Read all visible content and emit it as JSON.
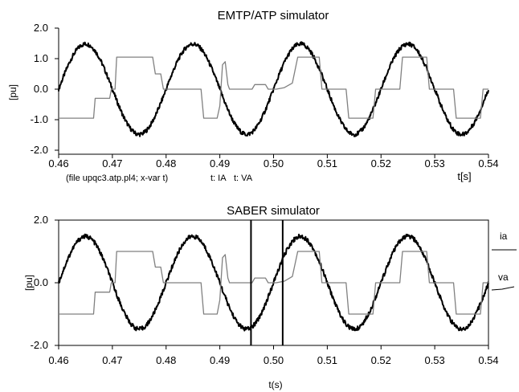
{
  "colors": {
    "ia": "#000000",
    "va": "#808080",
    "axis": "#000000"
  },
  "chart_data": [
    {
      "type": "line",
      "title": "EMTP/ATP simulator",
      "xlabel": "t[s]",
      "ylabel": "[pu]",
      "footer_file": "(file upqc3.atp.pl4; x-var t)",
      "legend": [
        "t: IA",
        "t: VA"
      ],
      "xlim": [
        0.46,
        0.54
      ],
      "ylim": [
        -2.0,
        2.0
      ],
      "xticks": [
        "0.46",
        "0.47",
        "0.48",
        "0.49",
        "0.50",
        "0.51",
        "0.52",
        "0.53",
        "0.54"
      ],
      "yticks": [
        "2.0",
        "1.0",
        "0.0",
        "-1.0",
        "-2.0"
      ],
      "grid": false,
      "series": [
        {
          "name": "t: IA",
          "color": "#000000",
          "x": [
            0.46,
            0.4625,
            0.465,
            0.4675,
            0.47,
            0.4725,
            0.475,
            0.4775,
            0.48,
            0.4825,
            0.485,
            0.4875,
            0.49,
            0.4925,
            0.495,
            0.4975,
            0.5,
            0.5025,
            0.505,
            0.5075,
            0.51,
            0.5125,
            0.515,
            0.5175,
            0.52,
            0.5225,
            0.525,
            0.5275,
            0.53,
            0.5325,
            0.535,
            0.5375,
            0.54
          ],
          "y": [
            0.0,
            1.05,
            1.48,
            1.05,
            0.0,
            -1.05,
            -1.48,
            -1.05,
            0.0,
            1.05,
            1.48,
            1.05,
            0.0,
            -1.05,
            -1.48,
            -1.05,
            0.0,
            1.05,
            1.48,
            1.05,
            0.0,
            -1.05,
            -1.48,
            -1.05,
            0.0,
            1.05,
            1.48,
            1.05,
            0.0,
            -1.05,
            -1.48,
            -1.05,
            0.0
          ]
        },
        {
          "name": "t: VA",
          "color": "#808080",
          "x": [
            0.46,
            0.4665,
            0.4668,
            0.4695,
            0.4698,
            0.4705,
            0.4708,
            0.4775,
            0.478,
            0.479,
            0.4795,
            0.4865,
            0.487,
            0.4895,
            0.49,
            0.4905,
            0.491,
            0.4915,
            0.4918,
            0.496,
            0.4965,
            0.4985,
            0.499,
            0.5005,
            0.502,
            0.5035,
            0.5045,
            0.5085,
            0.509,
            0.5135,
            0.514,
            0.5185,
            0.519,
            0.5235,
            0.524,
            0.5285,
            0.529,
            0.5335,
            0.534,
            0.5385,
            0.539,
            0.54
          ],
          "y": [
            -0.95,
            -0.95,
            -0.3,
            -0.3,
            0.0,
            0.0,
            1.05,
            1.05,
            0.5,
            0.5,
            0.0,
            0.0,
            -0.95,
            -0.95,
            -0.55,
            0.8,
            0.9,
            0.15,
            0.0,
            0.0,
            0.15,
            0.15,
            0.0,
            0.0,
            0.05,
            0.2,
            1.05,
            1.05,
            0.0,
            0.0,
            -0.95,
            -0.95,
            0.0,
            0.0,
            1.05,
            1.05,
            0.0,
            0.0,
            -0.95,
            -0.95,
            0.0,
            0.0
          ]
        }
      ]
    },
    {
      "type": "line",
      "title": "SABER simulator",
      "xlabel": "t(s)",
      "ylabel": "[pu]",
      "xlim": [
        0.46,
        0.54
      ],
      "ylim": [
        -2.0,
        2.0
      ],
      "xticks": [
        "0.46",
        "0.47",
        "0.48",
        "0.49",
        "0.50",
        "0.51",
        "0.52",
        "0.53",
        "0.54"
      ],
      "yticks": [
        "2.0",
        "0.0",
        "-2.0"
      ],
      "grid": false,
      "cursors_x": [
        0.4958,
        0.5017
      ],
      "series": [
        {
          "name": "ia",
          "color": "#000000",
          "x": [
            0.46,
            0.4625,
            0.465,
            0.4675,
            0.47,
            0.4725,
            0.475,
            0.4775,
            0.48,
            0.4825,
            0.485,
            0.4875,
            0.49,
            0.4925,
            0.495,
            0.4975,
            0.5,
            0.5025,
            0.505,
            0.5075,
            0.51,
            0.5125,
            0.515,
            0.5175,
            0.52,
            0.5225,
            0.525,
            0.5275,
            0.53,
            0.5325,
            0.535,
            0.5375,
            0.54
          ],
          "y": [
            0.0,
            1.05,
            1.48,
            1.05,
            0.0,
            -1.05,
            -1.48,
            -1.05,
            0.0,
            1.05,
            1.48,
            1.05,
            0.0,
            -1.05,
            -1.48,
            -1.05,
            0.0,
            1.05,
            1.48,
            1.05,
            0.0,
            -1.05,
            -1.48,
            -1.05,
            0.0,
            1.05,
            1.48,
            1.05,
            0.0,
            -1.05,
            -1.48,
            -1.05,
            0.0
          ]
        },
        {
          "name": "va",
          "color": "#808080",
          "x": [
            0.46,
            0.4665,
            0.4668,
            0.4695,
            0.4698,
            0.4705,
            0.4708,
            0.4775,
            0.478,
            0.479,
            0.4795,
            0.4865,
            0.487,
            0.4895,
            0.49,
            0.4905,
            0.491,
            0.4915,
            0.4918,
            0.496,
            0.4965,
            0.4985,
            0.499,
            0.5005,
            0.502,
            0.5035,
            0.5045,
            0.5085,
            0.509,
            0.5135,
            0.514,
            0.5185,
            0.519,
            0.5235,
            0.524,
            0.5285,
            0.529,
            0.5335,
            0.534,
            0.5385,
            0.539,
            0.54
          ],
          "y": [
            -1.0,
            -1.0,
            -0.3,
            -0.3,
            0.0,
            0.0,
            1.0,
            1.0,
            0.5,
            0.5,
            0.0,
            0.0,
            -1.0,
            -1.0,
            -0.55,
            0.8,
            0.9,
            0.15,
            0.0,
            0.0,
            0.15,
            0.15,
            0.0,
            0.0,
            0.05,
            0.2,
            1.0,
            1.0,
            0.0,
            0.0,
            -1.0,
            -1.0,
            0.0,
            0.0,
            1.0,
            1.0,
            0.0,
            0.0,
            -1.0,
            -1.0,
            0.0,
            0.0
          ]
        }
      ]
    }
  ]
}
